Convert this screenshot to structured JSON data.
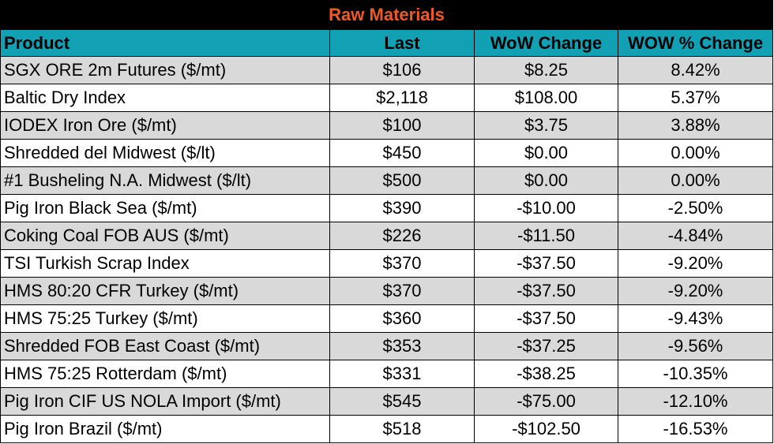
{
  "title": "Raw Materials",
  "columns": [
    "Product",
    "Last",
    "WoW Change",
    "WOW % Change"
  ],
  "rows": [
    {
      "product": "SGX ORE 2m Futures ($/mt)",
      "last": "$106",
      "wow": "$8.25",
      "pct": "8.42%"
    },
    {
      "product": "Baltic Dry Index",
      "last": "$2,118",
      "wow": "$108.00",
      "pct": "5.37%"
    },
    {
      "product": "IODEX  Iron Ore ($/mt)",
      "last": "$100",
      "wow": "$3.75",
      "pct": "3.88%"
    },
    {
      "product": "Shredded del  Midwest ($/lt)",
      "last": "$450",
      "wow": "$0.00",
      "pct": "0.00%"
    },
    {
      "product": "#1 Busheling N.A. Midwest ($/lt)",
      "last": "$500",
      "wow": "$0.00",
      "pct": "0.00%"
    },
    {
      "product": "Pig Iron Black Sea ($/mt)",
      "last": "$390",
      "wow": "-$10.00",
      "pct": "-2.50%"
    },
    {
      "product": "Coking Coal FOB AUS ($/mt)",
      "last": "$226",
      "wow": "-$11.50",
      "pct": "-4.84%"
    },
    {
      "product": "TSI Turkish Scrap Index",
      "last": "$370",
      "wow": "-$37.50",
      "pct": "-9.20%"
    },
    {
      "product": "HMS 80:20 CFR Turkey ($/mt)",
      "last": "$370",
      "wow": "-$37.50",
      "pct": "-9.20%"
    },
    {
      "product": "HMS 75:25 Turkey ($/mt)",
      "last": "$360",
      "wow": "-$37.50",
      "pct": "-9.43%"
    },
    {
      "product": "Shredded FOB East Coast ($/mt)",
      "last": "$353",
      "wow": "-$37.25",
      "pct": "-9.56%"
    },
    {
      "product": "HMS 75:25 Rotterdam ($/mt)",
      "last": "$331",
      "wow": "-$38.25",
      "pct": "-10.35%"
    },
    {
      "product": "Pig Iron CIF US NOLA Import ($/mt)",
      "last": "$545",
      "wow": "-$75.00",
      "pct": "-12.10%"
    },
    {
      "product": "Pig Iron Brazil ($/mt)",
      "last": "$518",
      "wow": "-$102.50",
      "pct": "-16.53%"
    }
  ],
  "colors": {
    "title_bg": "#000000",
    "title_text": "#f05a22",
    "header_bg": "#12a0b4",
    "row_shade": "#d9d9d9",
    "row_plain": "#ffffff"
  }
}
